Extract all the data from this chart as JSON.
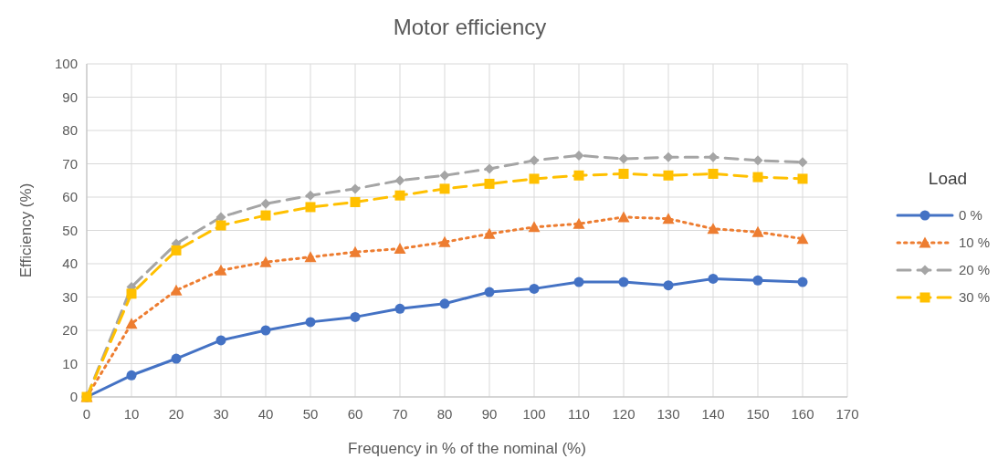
{
  "chart_data": {
    "type": "line",
    "title": "Motor efficiency",
    "xlabel": "Frequency in % of the nominal (%)",
    "ylabel": "Efficiency (%)",
    "legend_title": "Load",
    "legend": "right",
    "grid": true,
    "x": [
      0,
      10,
      20,
      30,
      40,
      50,
      60,
      70,
      80,
      90,
      100,
      110,
      120,
      130,
      140,
      150,
      160
    ],
    "xlim": [
      0,
      170
    ],
    "xticks": [
      0,
      10,
      20,
      30,
      40,
      50,
      60,
      70,
      80,
      90,
      100,
      110,
      120,
      130,
      140,
      150,
      160,
      170
    ],
    "ylim": [
      0,
      100
    ],
    "yticks": [
      0,
      10,
      20,
      30,
      40,
      50,
      60,
      70,
      80,
      90,
      100
    ],
    "series": [
      {
        "name": "0 %",
        "color": "#4472c4",
        "marker": "circle",
        "line_style": "solid",
        "values": [
          0,
          6.5,
          11.5,
          17,
          20,
          22.5,
          24,
          26.5,
          28,
          31.5,
          32.5,
          34.5,
          34.5,
          33.5,
          35.5,
          35,
          34.5
        ]
      },
      {
        "name": "10 %",
        "color": "#ed7d31",
        "marker": "triangle",
        "line_style": "dotted",
        "values": [
          0,
          22,
          32,
          38,
          40.5,
          42,
          43.5,
          44.5,
          46.5,
          49,
          51,
          52,
          54,
          53.5,
          50.5,
          49.5,
          47.5
        ]
      },
      {
        "name": "20 %",
        "color": "#a5a5a5",
        "marker": "diamond",
        "line_style": "dashed",
        "values": [
          0,
          33,
          46,
          54,
          58,
          60.5,
          62.5,
          65,
          66.5,
          68.5,
          71,
          72.5,
          71.5,
          72,
          72,
          71,
          70.5
        ]
      },
      {
        "name": "30 %",
        "color": "#ffc000",
        "marker": "square",
        "line_style": "dashed",
        "values": [
          0,
          31,
          44,
          51.5,
          54.5,
          57,
          58.5,
          60.5,
          62.5,
          64,
          65.5,
          66.5,
          67,
          66.5,
          67,
          66,
          65.5
        ]
      }
    ]
  }
}
